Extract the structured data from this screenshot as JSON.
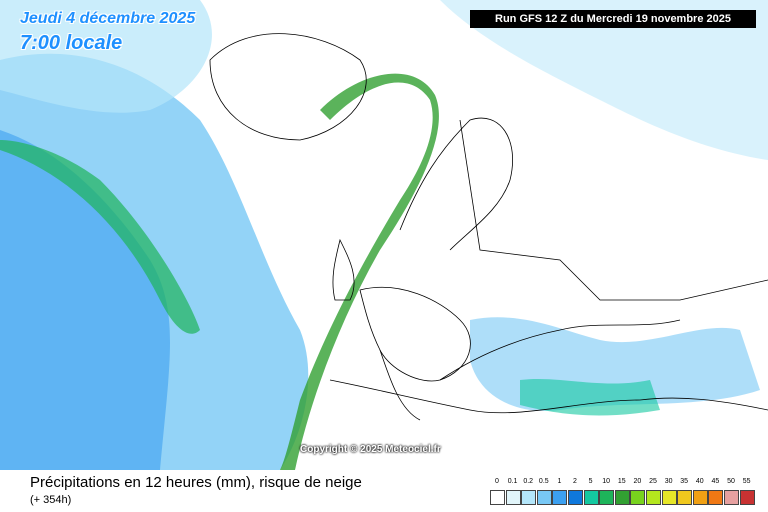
{
  "header": {
    "date": "Jeudi 4 décembre 2025",
    "time": "7:00 locale",
    "run": "Run GFS 12 Z du Mercredi 19 novembre 2025"
  },
  "copyright": "Copyright © 2025 Meteociel.fr",
  "footer": {
    "title": "Précipitations en 12 heures (mm), risque de neige",
    "lead": "(+ 354h)"
  },
  "legend": {
    "labels": [
      "0",
      "0.1",
      "0.2",
      "0.5",
      "1",
      "2",
      "5",
      "10",
      "15",
      "20",
      "25",
      "30",
      "35",
      "40",
      "45",
      "50",
      "55"
    ],
    "colors": [
      "#ffffff",
      "#e1f5fa",
      "#b4e6fa",
      "#78c8f5",
      "#3ca0f0",
      "#0f78dc",
      "#14c8a0",
      "#1eb45a",
      "#32a032",
      "#78d21e",
      "#b4e61e",
      "#e6e628",
      "#f0c81e",
      "#f0a014",
      "#f07814",
      "#e6a0a0",
      "#c83232"
    ]
  }
}
